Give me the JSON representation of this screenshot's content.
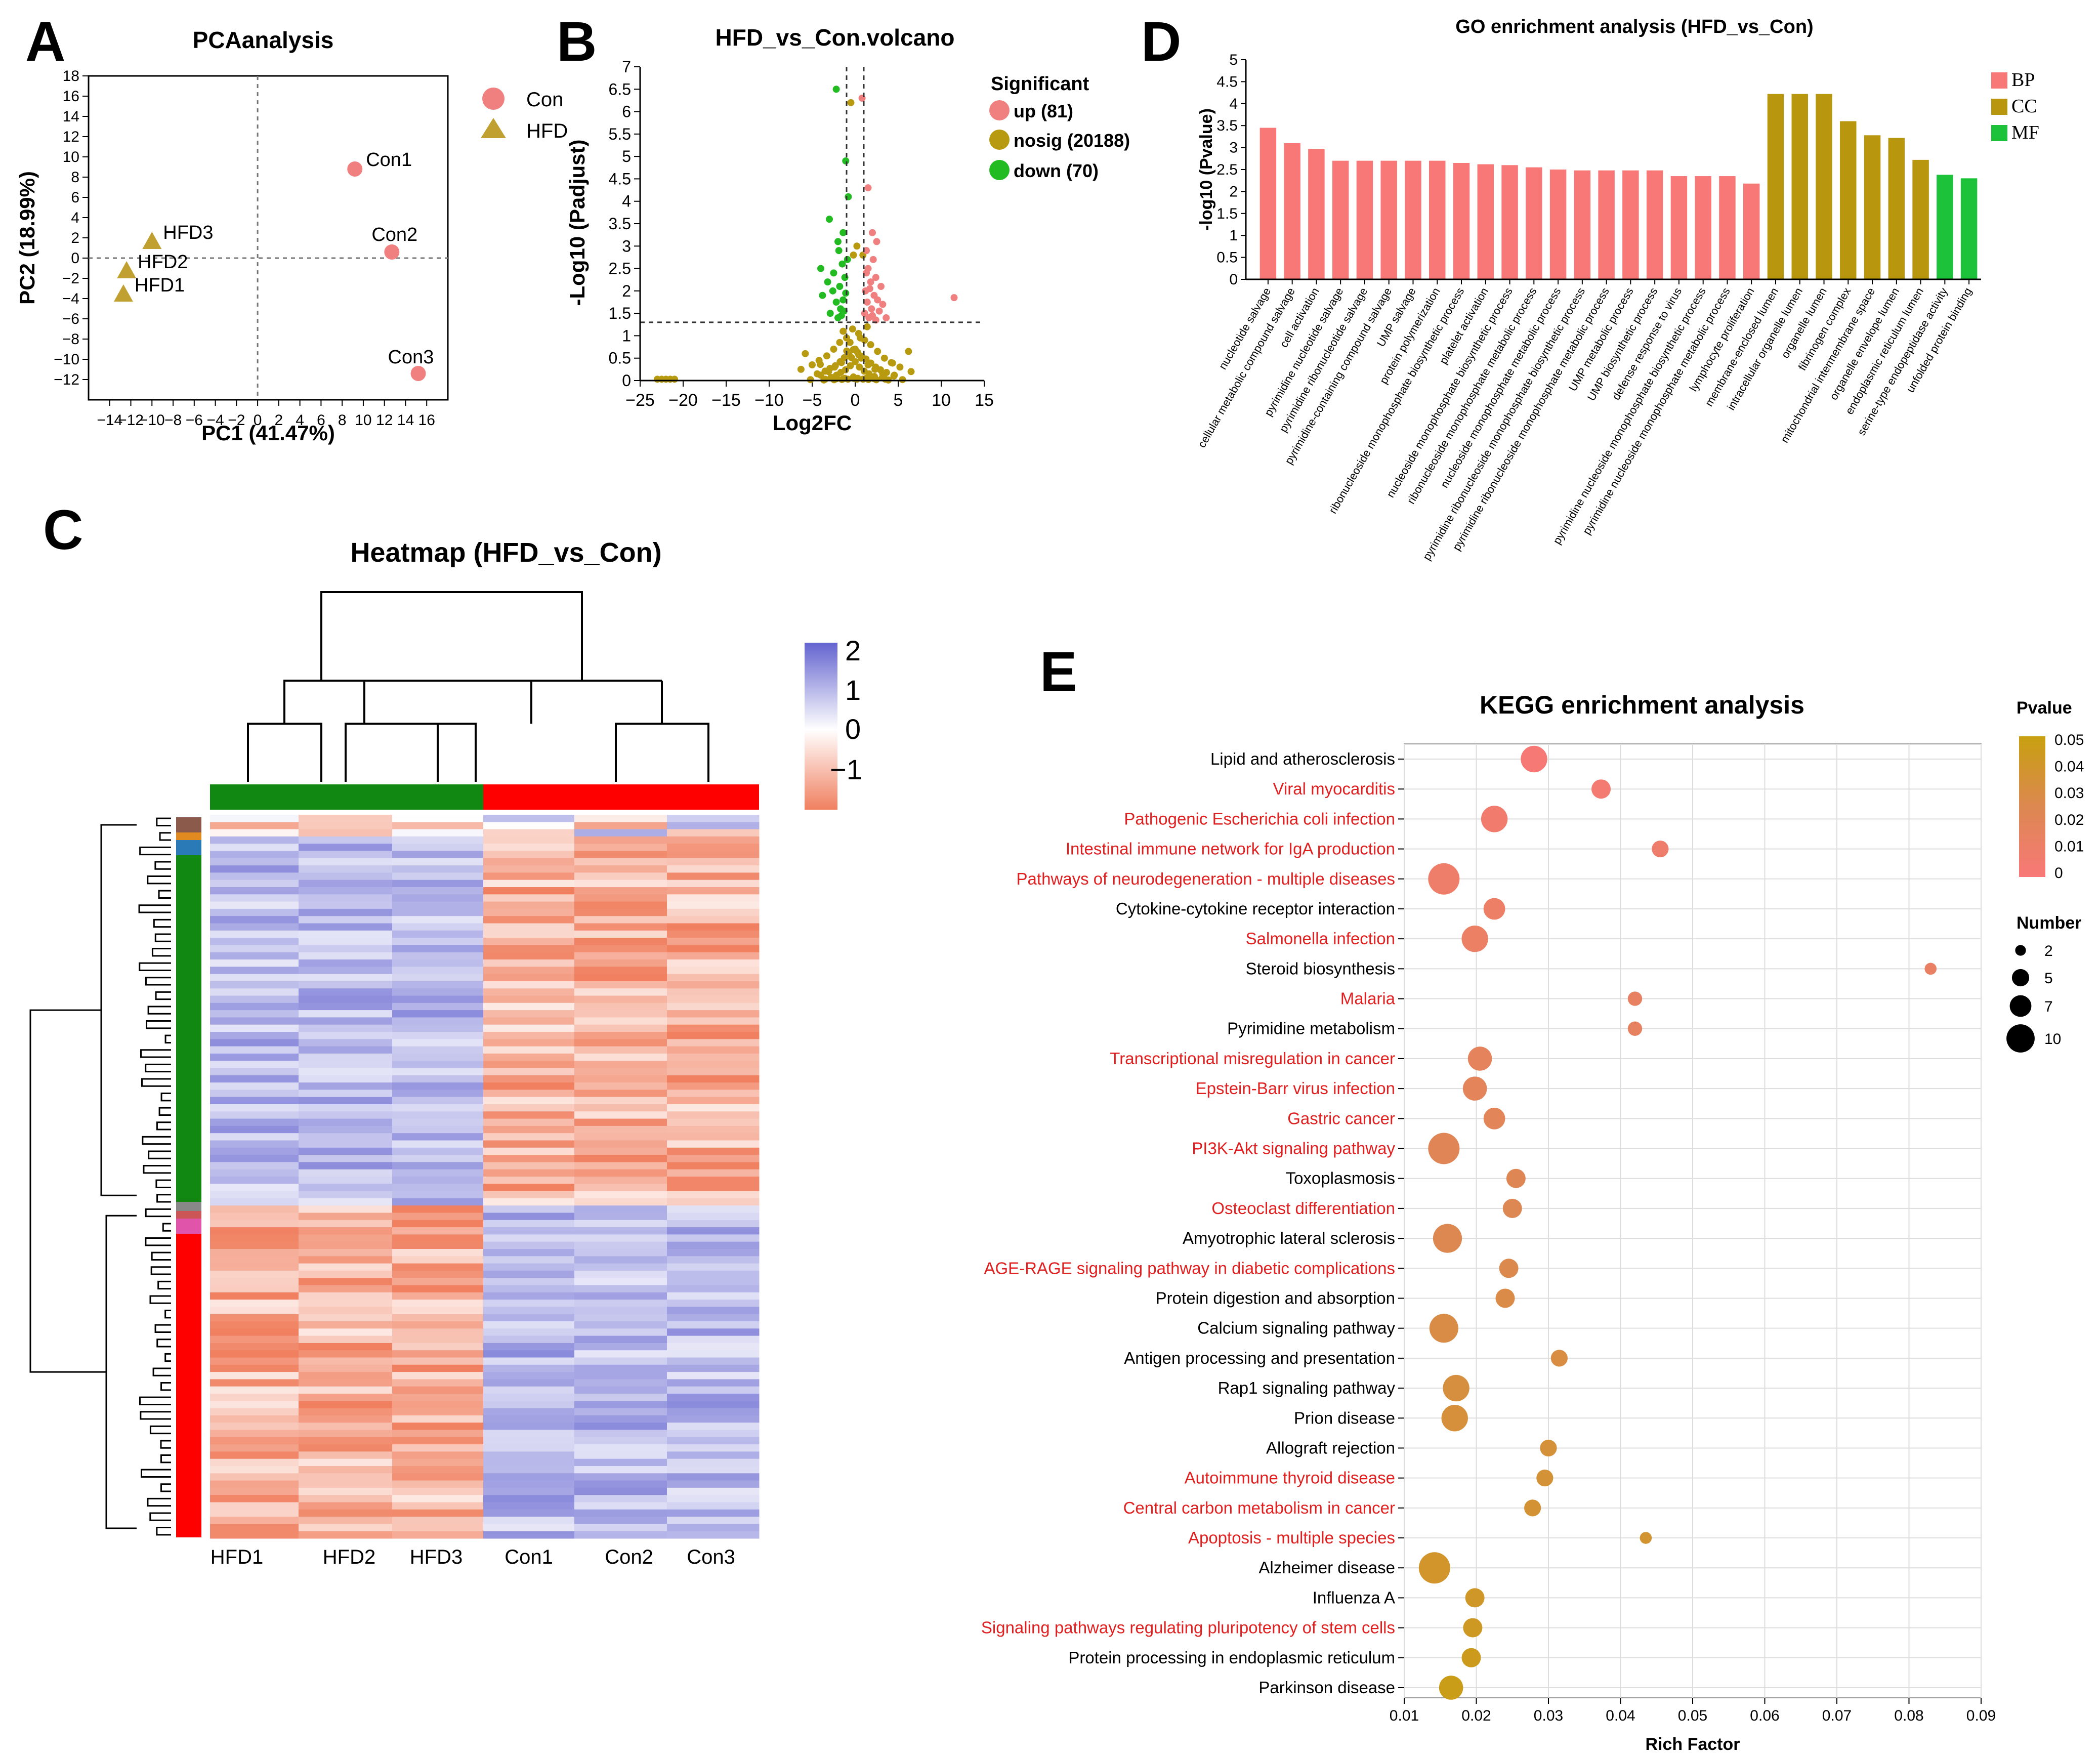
{
  "panel_letters": {
    "A": "A",
    "B": "B",
    "C": "C",
    "D": "D",
    "E": "E"
  },
  "colors": {
    "con_pink": "#f08080",
    "hfd_olive": "#c0a030",
    "up": "#f08080",
    "nosig": "#b89a10",
    "down": "#22bb22",
    "bp": "#f87878",
    "cc": "#b8960e",
    "mf": "#1cc23a",
    "heat_high": "#6464d0",
    "heat_mid": "#ffffff",
    "heat_low": "#f08060",
    "hfd_bar": "#118811",
    "con_bar": "#ff0000",
    "red_text": "#e02020"
  },
  "chart_data": [
    {
      "id": "A",
      "type": "scatter",
      "title": "PCAanalysis",
      "xlabel": "PC1 (41.47%)",
      "ylabel": "PC2 (18.99%)",
      "xlim": [
        -16,
        18
      ],
      "ylim": [
        -14,
        18
      ],
      "xticks": [
        -14,
        -12,
        -10,
        -8,
        -6,
        -4,
        -2,
        0,
        2,
        4,
        6,
        8,
        10,
        12,
        14,
        16
      ],
      "xtick_labels": [
        "−14",
        "−12",
        "−10",
        "−8",
        "−6",
        "−4",
        "−2",
        "0",
        "2",
        "4",
        "6",
        "8",
        "10",
        "12",
        "14",
        "16"
      ],
      "yticks": [
        18,
        16,
        14,
        12,
        10,
        8,
        6,
        4,
        2,
        0,
        -2,
        -4,
        -6,
        -8,
        -10,
        -12
      ],
      "ytick_labels": [
        "18",
        "16",
        "14",
        "12",
        "10",
        "8",
        "6",
        "4",
        "2",
        "0",
        "−2",
        "−4",
        "−6",
        "−8",
        "−10",
        "−12"
      ],
      "legend": [
        {
          "name": "Con",
          "shape": "circle"
        },
        {
          "name": "HFD",
          "shape": "triangle"
        }
      ],
      "points": [
        {
          "label": "Con1",
          "group": "Con",
          "x": 9.2,
          "y": 8.8
        },
        {
          "label": "Con2",
          "group": "Con",
          "x": 12.7,
          "y": 0.6
        },
        {
          "label": "Con3",
          "group": "Con",
          "x": 15.2,
          "y": -11.4
        },
        {
          "label": "HFD3",
          "group": "HFD",
          "x": -10.0,
          "y": 1.6
        },
        {
          "label": "HFD2",
          "group": "HFD",
          "x": -12.4,
          "y": -1.3
        },
        {
          "label": "HFD1",
          "group": "HFD",
          "x": -12.7,
          "y": -3.6
        }
      ]
    },
    {
      "id": "B",
      "type": "scatter",
      "title": "HFD_vs_Con.volcano",
      "xlabel": "Log2FC",
      "ylabel": "-Log10 (Padjust)",
      "xlim": [
        -25,
        15
      ],
      "ylim": [
        0,
        7
      ],
      "xticks": [
        -25,
        -20,
        -15,
        -10,
        -5,
        0,
        5,
        10,
        15
      ],
      "xtick_labels": [
        "−25",
        "−20",
        "−15",
        "−10",
        "−5",
        "0",
        "5",
        "10",
        "15"
      ],
      "yticks": [
        0,
        0.5,
        1,
        1.5,
        2,
        2.5,
        3,
        3.5,
        4,
        4.5,
        5,
        5.5,
        6,
        6.5,
        7
      ],
      "ytick_labels": [
        "0",
        "0.5",
        "1",
        "1.5",
        "2",
        "2.5",
        "3",
        "3.5",
        "4",
        "4.5",
        "5",
        "5.5",
        "6",
        "6.5",
        "7"
      ],
      "threshold_x": [
        -1,
        1
      ],
      "threshold_y": 1.3,
      "legend_title": "Significant",
      "legend": [
        {
          "name": "up (81)",
          "group": "up"
        },
        {
          "name": "nosig (20188)",
          "group": "nosig"
        },
        {
          "name": "down (70)",
          "group": "down"
        }
      ],
      "points_up": [
        [
          0.8,
          6.3
        ],
        [
          1.5,
          4.3
        ],
        [
          2.0,
          3.3
        ],
        [
          2.5,
          3.1
        ],
        [
          1.3,
          2.9
        ],
        [
          2.1,
          2.7
        ],
        [
          1.5,
          2.5
        ],
        [
          2.4,
          2.3
        ],
        [
          1.8,
          2.2
        ],
        [
          3.0,
          2.1
        ],
        [
          1.2,
          2.0
        ],
        [
          2.2,
          1.9
        ],
        [
          2.6,
          1.8
        ],
        [
          1.4,
          1.75
        ],
        [
          3.2,
          1.7
        ],
        [
          1.9,
          1.6
        ],
        [
          2.8,
          1.55
        ],
        [
          1.1,
          1.5
        ],
        [
          2.0,
          1.45
        ],
        [
          3.6,
          1.4
        ],
        [
          1.6,
          1.4
        ],
        [
          11.5,
          1.85
        ],
        [
          2.4,
          1.35
        ],
        [
          1.3,
          2.4
        ],
        [
          1.7,
          2.05
        ]
      ],
      "points_down": [
        [
          -2.2,
          6.5
        ],
        [
          -1.1,
          4.9
        ],
        [
          -0.8,
          4.1
        ],
        [
          -3.0,
          3.6
        ],
        [
          -1.4,
          3.3
        ],
        [
          -2.0,
          3.1
        ],
        [
          -4.0,
          2.5
        ],
        [
          -1.5,
          2.6
        ],
        [
          -2.5,
          2.4
        ],
        [
          -1.2,
          2.3
        ],
        [
          -3.2,
          2.2
        ],
        [
          -1.8,
          2.1
        ],
        [
          -2.6,
          2.0
        ],
        [
          -1.1,
          1.95
        ],
        [
          -3.8,
          1.9
        ],
        [
          -1.4,
          1.8
        ],
        [
          -2.2,
          1.75
        ],
        [
          -1.7,
          1.6
        ],
        [
          -1.3,
          1.55
        ],
        [
          -2.9,
          1.5
        ],
        [
          -1.6,
          1.45
        ],
        [
          -2.0,
          1.4
        ],
        [
          -0.9,
          2.7
        ],
        [
          -1.9,
          2.9
        ]
      ],
      "points_nosig": [
        [
          -0.5,
          6.2
        ],
        [
          0.9,
          2.8
        ],
        [
          -0.3,
          1.15
        ],
        [
          0.4,
          1.05
        ],
        [
          -1.0,
          0.95
        ],
        [
          1.1,
          0.9
        ],
        [
          -1.8,
          0.85
        ],
        [
          1.8,
          0.8
        ],
        [
          -2.5,
          0.7
        ],
        [
          2.6,
          0.65
        ],
        [
          -3.3,
          0.55
        ],
        [
          3.4,
          0.5
        ],
        [
          -4.2,
          0.45
        ],
        [
          4.2,
          0.4
        ],
        [
          -5.0,
          0.35
        ],
        [
          5.2,
          0.3
        ],
        [
          -6.3,
          0.25
        ],
        [
          6.5,
          0.2
        ],
        [
          6.2,
          0.65
        ],
        [
          -5.8,
          0.6
        ],
        [
          -0.8,
          0.55
        ],
        [
          0.7,
          0.5
        ],
        [
          -1.6,
          0.4
        ],
        [
          1.5,
          0.35
        ],
        [
          -2.4,
          0.3
        ],
        [
          2.3,
          0.25
        ],
        [
          -3.1,
          0.2
        ],
        [
          3.2,
          0.15
        ],
        [
          -4.0,
          0.12
        ],
        [
          4.5,
          0.1
        ],
        [
          -0.2,
          0.08
        ],
        [
          0.3,
          0.05
        ],
        [
          -1.2,
          0.05
        ],
        [
          1.3,
          0.05
        ],
        [
          -2.2,
          0.04
        ],
        [
          2.2,
          0.04
        ],
        [
          -3.5,
          0.03
        ],
        [
          3.5,
          0.03
        ],
        [
          -5.2,
          0.02
        ],
        [
          5.5,
          0.02
        ],
        [
          -22.5,
          0.03
        ],
        [
          -22.0,
          0.03
        ],
        [
          -21.5,
          0.03
        ],
        [
          -21.0,
          0.03
        ],
        [
          -23.0,
          0.03
        ],
        [
          0.0,
          0.7
        ],
        [
          -0.6,
          0.85
        ],
        [
          0.6,
          0.95
        ],
        [
          -1.4,
          1.1
        ],
        [
          1.4,
          1.2
        ],
        [
          -0.2,
          2.8
        ],
        [
          0.2,
          3.0
        ]
      ]
    },
    {
      "id": "C",
      "type": "heatmap",
      "title": "Heatmap (HFD_vs_Con)",
      "columns": [
        "HFD1",
        "HFD2",
        "HFD3",
        "Con1",
        "Con2",
        "Con3"
      ],
      "column_groups": [
        "HFD",
        "HFD",
        "HFD",
        "Con",
        "Con",
        "Con"
      ],
      "scale_ticks": [
        2,
        1,
        0,
        -1
      ],
      "scale_tick_labels": [
        "2",
        "1",
        "0",
        "−1"
      ],
      "value_range": [
        -1.5,
        2.2
      ]
    },
    {
      "id": "D",
      "type": "bar",
      "title": "GO enrichment analysis (HFD_vs_Con)",
      "ylabel": "-log10 (Pvalue)",
      "ylim": [
        0,
        5
      ],
      "yticks": [
        0,
        0.5,
        1,
        1.5,
        2,
        2.5,
        3,
        3.5,
        4,
        4.5,
        5
      ],
      "ytick_labels": [
        "0",
        "0.5",
        "1",
        "1.5",
        "2",
        "2.5",
        "3",
        "3.5",
        "4",
        "4.5",
        "5"
      ],
      "legend": [
        {
          "name": "BP",
          "cat": "bp"
        },
        {
          "name": "CC",
          "cat": "cc"
        },
        {
          "name": "MF",
          "cat": "mf"
        }
      ],
      "categories": [
        "nucleotide salvage",
        "cellular metabolic compound salvage",
        "cell activation",
        "pyrimidine nucleotide salvage",
        "pyrimidine ribonucleotide salvage",
        "pyrimidine-containing compound salvage",
        "UMP salvage",
        "protein polymerization",
        "ribonucleoside monophosphate biosynthetic process",
        "platelet activation",
        "nucleoside monophosphate biosynthetic process",
        "ribonucleoside monophosphate metabolic process",
        "nucleoside monophosphate metabolic process",
        "pyrimidine ribonucleoside monophosphate biosynthetic process",
        "pyrimidine ribonucleoside monophosphate metabolic process",
        "UMP metabolic process",
        "UMP biosynthetic process",
        "defense response to virus",
        "pyrimidine nucleoside monophosphate biosynthetic process",
        "pyrimidine nucleoside monophosphate metabolic process",
        "lymphocyte proliferation",
        "membrane-enclosed lumen",
        "intracellular organelle lumen",
        "organelle lumen",
        "fibrinogen complex",
        "mitochondrial intermembrane space",
        "organelle envelope lumen",
        "endoplasmic reticulum lumen",
        "serine-type endopeptidase activity",
        "unfolded protein binding"
      ],
      "cats": [
        "bp",
        "bp",
        "bp",
        "bp",
        "bp",
        "bp",
        "bp",
        "bp",
        "bp",
        "bp",
        "bp",
        "bp",
        "bp",
        "bp",
        "bp",
        "bp",
        "bp",
        "bp",
        "bp",
        "bp",
        "bp",
        "cc",
        "cc",
        "cc",
        "cc",
        "cc",
        "cc",
        "cc",
        "mf",
        "mf"
      ],
      "values": [
        3.45,
        3.1,
        2.97,
        2.7,
        2.7,
        2.7,
        2.7,
        2.7,
        2.65,
        2.62,
        2.6,
        2.55,
        2.5,
        2.48,
        2.48,
        2.48,
        2.48,
        2.35,
        2.35,
        2.35,
        2.18,
        4.22,
        4.22,
        4.22,
        3.6,
        3.28,
        3.22,
        2.72,
        2.38,
        2.3
      ]
    },
    {
      "id": "E",
      "type": "scatter",
      "title": "KEGG enrichment analysis",
      "xlabel": "Rich Factor",
      "xlim": [
        0.01,
        0.09
      ],
      "xticks": [
        0.01,
        0.02,
        0.03,
        0.04,
        0.05,
        0.06,
        0.07,
        0.08,
        0.09
      ],
      "xtick_labels": [
        "0.01",
        "0.02",
        "0.03",
        "0.04",
        "0.05",
        "0.06",
        "0.07",
        "0.08",
        "0.09"
      ],
      "colorbar_title": "Pvalue",
      "colorbar_range": [
        0,
        0.05
      ],
      "colorbar_ticks": [
        "0.05",
        "0.04",
        "0.03",
        "0.02",
        "0.01",
        "0"
      ],
      "size_legend_title": "Number",
      "size_legend": [
        {
          "label": "2",
          "n": 2
        },
        {
          "label": "5",
          "n": 5
        },
        {
          "label": "7",
          "n": 7
        },
        {
          "label": "10",
          "n": 10
        }
      ],
      "pathways": [
        {
          "name": "Lipid and atherosclerosis",
          "red": false,
          "rich": 0.028,
          "pvalue": 0.001,
          "number": 8
        },
        {
          "name": "Viral myocarditis",
          "red": true,
          "rich": 0.0373,
          "pvalue": 0.004,
          "number": 5
        },
        {
          "name": "Pathogenic Escherichia coli infection",
          "red": true,
          "rich": 0.0225,
          "pvalue": 0.006,
          "number": 8
        },
        {
          "name": "Intestinal immune network for IgA production",
          "red": true,
          "rich": 0.0455,
          "pvalue": 0.008,
          "number": 4
        },
        {
          "name": "Pathways of neurodegeneration - multiple diseases",
          "red": true,
          "rich": 0.0155,
          "pvalue": 0.009,
          "number": 10
        },
        {
          "name": "Cytokine-cytokine receptor interaction",
          "red": false,
          "rich": 0.0225,
          "pvalue": 0.011,
          "number": 6
        },
        {
          "name": "Salmonella infection",
          "red": true,
          "rich": 0.0198,
          "pvalue": 0.012,
          "number": 8
        },
        {
          "name": "Steroid biosynthesis",
          "red": false,
          "rich": 0.083,
          "pvalue": 0.013,
          "number": 2
        },
        {
          "name": "Malaria",
          "red": true,
          "rich": 0.042,
          "pvalue": 0.014,
          "number": 3
        },
        {
          "name": "Pyrimidine metabolism",
          "red": false,
          "rich": 0.042,
          "pvalue": 0.015,
          "number": 3
        },
        {
          "name": "Transcriptional misregulation in cancer",
          "red": true,
          "rich": 0.0205,
          "pvalue": 0.017,
          "number": 7
        },
        {
          "name": "Epstein-Barr virus infection",
          "red": true,
          "rich": 0.0198,
          "pvalue": 0.018,
          "number": 7
        },
        {
          "name": "Gastric cancer",
          "red": true,
          "rich": 0.0225,
          "pvalue": 0.02,
          "number": 6
        },
        {
          "name": "PI3K-Akt signaling pathway",
          "red": true,
          "rich": 0.0155,
          "pvalue": 0.021,
          "number": 10
        },
        {
          "name": "Toxoplasmosis",
          "red": false,
          "rich": 0.0255,
          "pvalue": 0.022,
          "number": 5
        },
        {
          "name": "Osteoclast differentiation",
          "red": true,
          "rich": 0.025,
          "pvalue": 0.024,
          "number": 5
        },
        {
          "name": "Amyotrophic lateral sclerosis",
          "red": false,
          "rich": 0.016,
          "pvalue": 0.025,
          "number": 9
        },
        {
          "name": "AGE-RAGE signaling pathway in diabetic complications",
          "red": true,
          "rich": 0.0245,
          "pvalue": 0.026,
          "number": 5
        },
        {
          "name": "Protein digestion and absorption",
          "red": false,
          "rich": 0.024,
          "pvalue": 0.028,
          "number": 5
        },
        {
          "name": "Calcium signaling pathway",
          "red": false,
          "rich": 0.0155,
          "pvalue": 0.029,
          "number": 9
        },
        {
          "name": "Antigen processing and presentation",
          "red": false,
          "rich": 0.0315,
          "pvalue": 0.03,
          "number": 4
        },
        {
          "name": "Rap1 signaling pathway",
          "red": false,
          "rich": 0.0172,
          "pvalue": 0.032,
          "number": 8
        },
        {
          "name": "Prion disease",
          "red": false,
          "rich": 0.017,
          "pvalue": 0.033,
          "number": 8
        },
        {
          "name": "Allograft rejection",
          "red": false,
          "rich": 0.03,
          "pvalue": 0.034,
          "number": 4
        },
        {
          "name": "Autoimmune thyroid disease",
          "red": true,
          "rich": 0.0295,
          "pvalue": 0.035,
          "number": 4
        },
        {
          "name": "Central carbon metabolism in cancer",
          "red": true,
          "rich": 0.0278,
          "pvalue": 0.036,
          "number": 4
        },
        {
          "name": "Apoptosis - multiple species",
          "red": true,
          "rich": 0.0435,
          "pvalue": 0.037,
          "number": 2
        },
        {
          "name": "Alzheimer disease",
          "red": false,
          "rich": 0.0142,
          "pvalue": 0.039,
          "number": 10
        },
        {
          "name": "Influenza A",
          "red": false,
          "rich": 0.0198,
          "pvalue": 0.041,
          "number": 5
        },
        {
          "name": "Signaling pathways regulating pluripotency of stem cells",
          "red": true,
          "rich": 0.0195,
          "pvalue": 0.043,
          "number": 5
        },
        {
          "name": "Protein processing in endoplasmic reticulum",
          "red": false,
          "rich": 0.0193,
          "pvalue": 0.045,
          "number": 5
        },
        {
          "name": "Parkinson disease",
          "red": false,
          "rich": 0.0165,
          "pvalue": 0.047,
          "number": 7
        }
      ]
    }
  ]
}
